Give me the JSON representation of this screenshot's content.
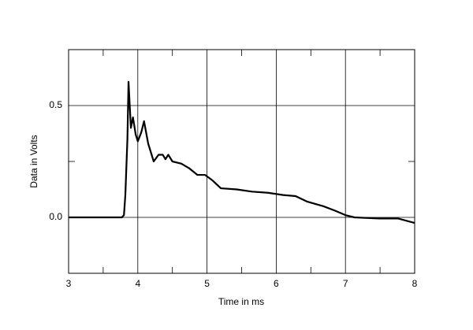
{
  "chart_data": {
    "type": "line",
    "x_label": "Time in ms",
    "y_label": "Data in Volts",
    "xlim": [
      3,
      8
    ],
    "ylim": [
      -0.25,
      0.75
    ],
    "xticks": [
      3,
      4,
      5,
      6,
      7,
      8
    ],
    "yticks": [
      {
        "value": 0,
        "label": "0.0"
      },
      0.5
    ],
    "xminor_ticks": [
      3.5,
      4.5,
      5.5,
      6.5,
      7.5
    ],
    "yminor_ticks": [
      -0.25,
      0.25,
      0.75
    ],
    "grid": true,
    "series": [
      {
        "color": "#000000",
        "x": [
          3.0,
          3.77,
          3.8,
          3.82,
          3.85,
          3.866,
          3.9,
          3.93,
          3.97,
          4.0,
          4.05,
          4.09,
          4.15,
          4.23,
          4.3,
          4.36,
          4.4,
          4.44,
          4.5,
          4.63,
          4.74,
          4.86,
          4.97,
          5.08,
          5.2,
          5.43,
          5.65,
          5.88,
          6.1,
          6.28,
          6.45,
          6.68,
          6.85,
          7.0,
          7.13,
          7.48,
          7.76,
          8.0
        ],
        "values": [
          0,
          0,
          0.01,
          0.1,
          0.35,
          0.606,
          0.4,
          0.447,
          0.37,
          0.34,
          0.38,
          0.43,
          0.33,
          0.25,
          0.28,
          0.28,
          0.26,
          0.28,
          0.25,
          0.24,
          0.22,
          0.19,
          0.19,
          0.165,
          0.13,
          0.125,
          0.115,
          0.11,
          0.1,
          0.095,
          0.07,
          0.05,
          0.03,
          0.01,
          0.0,
          -0.005,
          -0.005,
          -0.025
        ]
      }
    ]
  }
}
